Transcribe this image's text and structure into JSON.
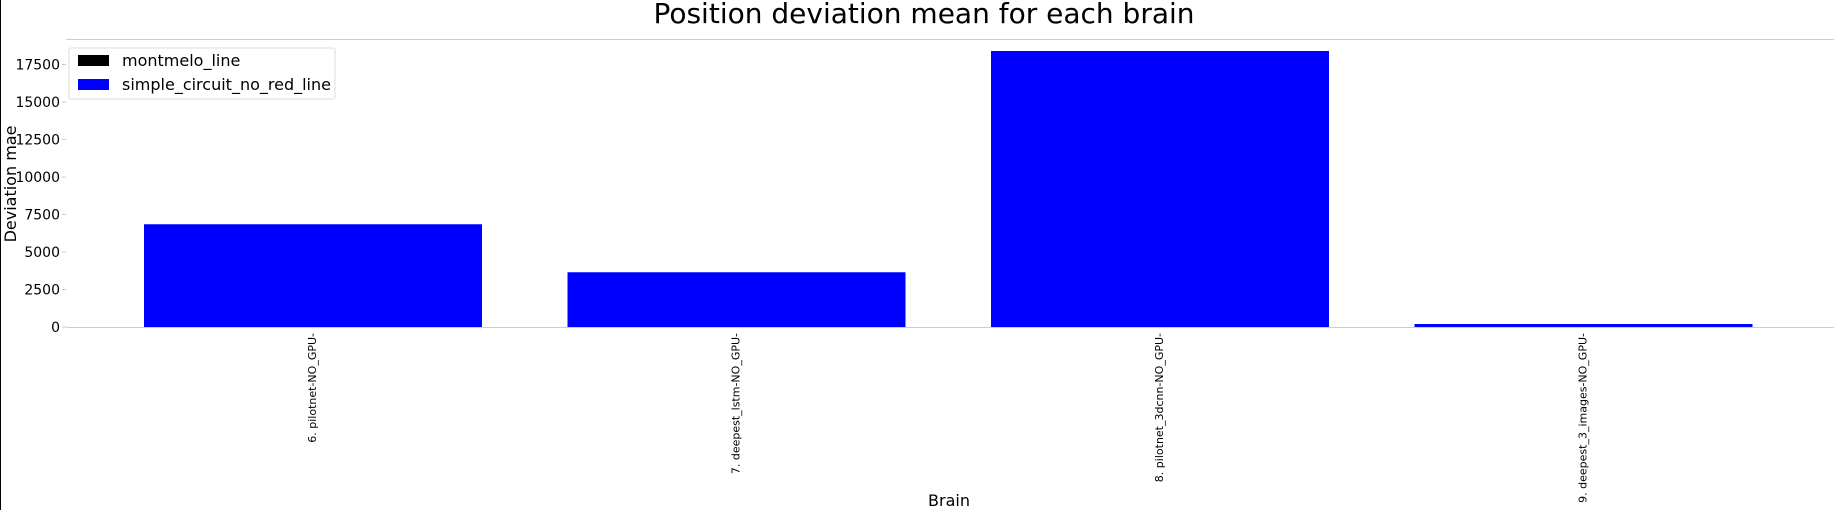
{
  "chart_data": {
    "type": "bar",
    "title": "Position deviation mean for each brain",
    "xlabel": "Brain",
    "ylabel": "Deviation mae",
    "categories": [
      "6. pilotnet-NO_GPU-",
      "7. deepest_lstm-NO_GPU-",
      "8. pilotnet_3dcnn-NO_GPU-",
      "9. deepest_3_images-NO_GPU-"
    ],
    "series": [
      {
        "name": "montmelo_line",
        "color": "#000000",
        "values": [
          0,
          0,
          0,
          0
        ]
      },
      {
        "name": "simple_circuit_no_red_line",
        "color": "#0000ff",
        "values": [
          6850,
          3650,
          18400,
          200
        ]
      }
    ],
    "ylim": [
      0,
      19200
    ],
    "yticks": [
      0,
      2500,
      5000,
      7500,
      10000,
      12500,
      15000,
      17500
    ],
    "grid": false,
    "legend_position": "top-left"
  }
}
